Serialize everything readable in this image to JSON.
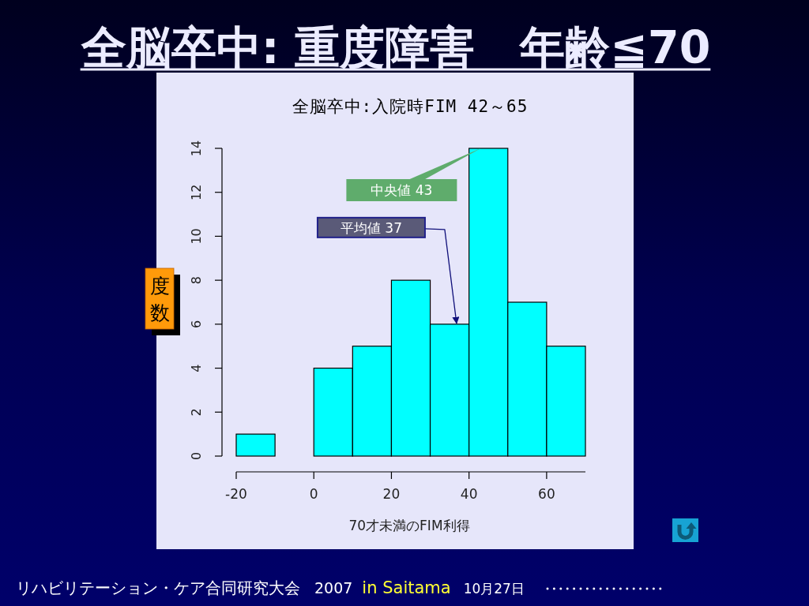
{
  "chart_data": {
    "type": "histogram",
    "title": "全脳卒中: 重度障害　年齢≦70",
    "subtitle": "全脳卒中:入院時FIM 42～65",
    "xlabel": "70才未満のFIM利得",
    "ylabel": "度数",
    "bins": [
      -20,
      -10,
      0,
      10,
      20,
      30,
      40,
      50,
      60,
      70
    ],
    "values": [
      1,
      0,
      4,
      5,
      8,
      6,
      14,
      7,
      5
    ],
    "color": "#00ffff",
    "xlim": [
      -20,
      70
    ],
    "xticks": [
      -20,
      0,
      20,
      40,
      60
    ],
    "ylim": [
      0,
      14
    ],
    "yticks": [
      0,
      2,
      4,
      6,
      8,
      10,
      12,
      14
    ],
    "annotations": [
      {
        "text": "中央値 43",
        "x": 43,
        "y": 14
      },
      {
        "text": "平均値 37",
        "x": 37,
        "y": 6
      },
      "リハビリテーション・ケア合同研究大会",
      "2007",
      "in Saitama",
      "10月27日"
    ]
  }
}
